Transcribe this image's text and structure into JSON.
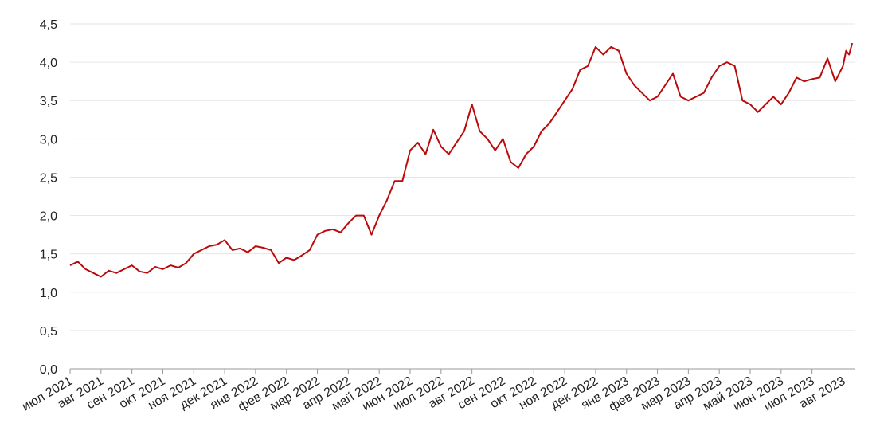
{
  "chart_data": {
    "type": "line",
    "x": [
      0,
      0.25,
      0.5,
      0.75,
      1,
      1.25,
      1.5,
      1.75,
      2,
      2.25,
      2.5,
      2.75,
      3,
      3.25,
      3.5,
      3.75,
      4,
      4.25,
      4.5,
      4.75,
      5,
      5.25,
      5.5,
      5.75,
      6,
      6.25,
      6.5,
      6.75,
      7,
      7.25,
      7.5,
      7.75,
      8,
      8.25,
      8.5,
      8.75,
      9,
      9.25,
      9.5,
      9.75,
      10,
      10.25,
      10.5,
      10.75,
      11,
      11.25,
      11.5,
      11.75,
      12,
      12.25,
      12.5,
      12.75,
      13,
      13.25,
      13.5,
      13.75,
      14,
      14.25,
      14.5,
      14.75,
      15,
      15.25,
      15.5,
      15.75,
      16,
      16.25,
      16.5,
      16.75,
      17,
      17.25,
      17.5,
      17.75,
      18,
      18.25,
      18.5,
      18.75,
      19,
      19.25,
      19.5,
      19.75,
      20,
      20.25,
      20.5,
      20.75,
      21,
      21.25,
      21.5,
      21.75,
      22,
      22.25,
      22.5,
      22.75,
      23,
      23.25,
      23.5,
      23.75,
      24,
      24.25,
      24.5,
      24.75,
      25,
      25.1,
      25.2,
      25.3
    ],
    "series": [
      {
        "color": "#bb0a0a",
        "values": [
          1.35,
          1.4,
          1.3,
          1.25,
          1.2,
          1.28,
          1.25,
          1.3,
          1.35,
          1.27,
          1.25,
          1.33,
          1.3,
          1.35,
          1.32,
          1.38,
          1.5,
          1.55,
          1.6,
          1.62,
          1.68,
          1.55,
          1.57,
          1.52,
          1.6,
          1.58,
          1.55,
          1.38,
          1.45,
          1.42,
          1.48,
          1.55,
          1.75,
          1.8,
          1.82,
          1.78,
          1.9,
          2.0,
          2.0,
          1.75,
          2.0,
          2.2,
          2.45,
          2.45,
          2.85,
          2.95,
          2.8,
          3.12,
          2.9,
          2.8,
          2.95,
          3.1,
          3.45,
          3.1,
          3.0,
          2.85,
          3.0,
          2.7,
          2.62,
          2.8,
          2.9,
          3.1,
          3.2,
          3.35,
          3.5,
          3.65,
          3.9,
          3.95,
          4.2,
          4.1,
          4.2,
          4.15,
          3.85,
          3.7,
          3.6,
          3.5,
          3.55,
          3.7,
          3.85,
          3.55,
          3.5,
          3.55,
          3.6,
          3.8,
          3.95,
          4.0,
          3.95,
          3.5,
          3.45,
          3.35,
          3.45,
          3.55,
          3.45,
          3.6,
          3.8,
          3.75,
          3.78,
          3.8,
          4.05,
          3.75,
          3.95,
          4.15,
          4.1,
          4.25
        ]
      }
    ],
    "xlim": [
      0,
      25.4
    ],
    "xticks": [
      {
        "value": 0,
        "label": "июл 2021"
      },
      {
        "value": 1,
        "label": "авг 2021"
      },
      {
        "value": 2,
        "label": "сен 2021"
      },
      {
        "value": 3,
        "label": "окт 2021"
      },
      {
        "value": 4,
        "label": "ноя 2021"
      },
      {
        "value": 5,
        "label": "дек 2021"
      },
      {
        "value": 6,
        "label": "янв 2022"
      },
      {
        "value": 7,
        "label": "фев 2022"
      },
      {
        "value": 8,
        "label": "мар 2022"
      },
      {
        "value": 9,
        "label": "апр 2022"
      },
      {
        "value": 10,
        "label": "май 2022"
      },
      {
        "value": 11,
        "label": "июн 2022"
      },
      {
        "value": 12,
        "label": "июл 2022"
      },
      {
        "value": 13,
        "label": "авг 2022"
      },
      {
        "value": 14,
        "label": "сен 2022"
      },
      {
        "value": 15,
        "label": "окт 2022"
      },
      {
        "value": 16,
        "label": "ноя 2022"
      },
      {
        "value": 17,
        "label": "дек 2022"
      },
      {
        "value": 18,
        "label": "янв 2023"
      },
      {
        "value": 19,
        "label": "фев 2023"
      },
      {
        "value": 20,
        "label": "мар 2023"
      },
      {
        "value": 21,
        "label": "апр 2023"
      },
      {
        "value": 22,
        "label": "май 2023"
      },
      {
        "value": 23,
        "label": "июн 2023"
      },
      {
        "value": 24,
        "label": "июл 2023"
      },
      {
        "value": 25,
        "label": "авг 2023"
      }
    ],
    "ylim": [
      0,
      4.5
    ],
    "yticks": [
      {
        "value": 0,
        "label": "0,0"
      },
      {
        "value": 0.5,
        "label": "0,5"
      },
      {
        "value": 1,
        "label": "1,0"
      },
      {
        "value": 1.5,
        "label": "1,5"
      },
      {
        "value": 2,
        "label": "2,0"
      },
      {
        "value": 2.5,
        "label": "2,5"
      },
      {
        "value": 3,
        "label": "3,0"
      },
      {
        "value": 3.5,
        "label": "3,5"
      },
      {
        "value": 4,
        "label": "4,0"
      },
      {
        "value": 4.5,
        "label": "4,5"
      }
    ],
    "grid": true
  }
}
